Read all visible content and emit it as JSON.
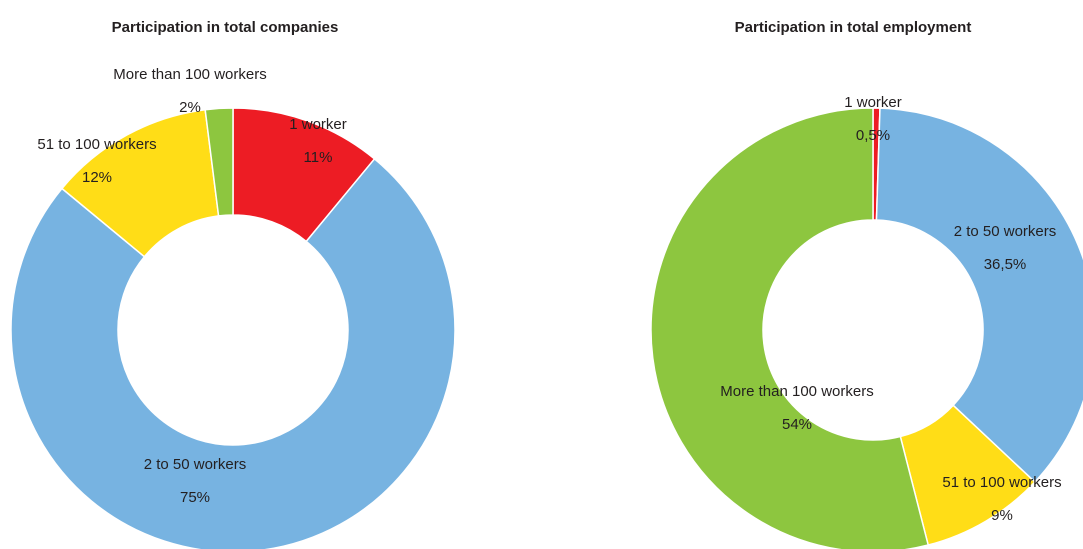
{
  "chart_data": [
    {
      "type": "donut",
      "title": "Participation in total companies",
      "categories": [
        "1 worker",
        "2 to 50 workers",
        "51 to 100 workers",
        "More than 100 workers"
      ],
      "values": [
        11,
        75,
        12,
        2
      ],
      "value_labels": [
        "11%",
        "75%",
        "12%",
        "2%"
      ],
      "colors": [
        "#ed1c24",
        "#77b3e1",
        "#ffdd17",
        "#8dc63f"
      ]
    },
    {
      "type": "donut",
      "title": "Participation in total employment",
      "categories": [
        "1 worker",
        "2 to 50 workers",
        "51 to 100 workers",
        "More than 100 workers"
      ],
      "values": [
        0.5,
        36.5,
        9,
        54
      ],
      "value_labels": [
        "0,5%",
        "36,5%",
        "9%",
        "54%"
      ],
      "colors": [
        "#ed1c24",
        "#77b3e1",
        "#ffdd17",
        "#8dc63f"
      ]
    }
  ]
}
